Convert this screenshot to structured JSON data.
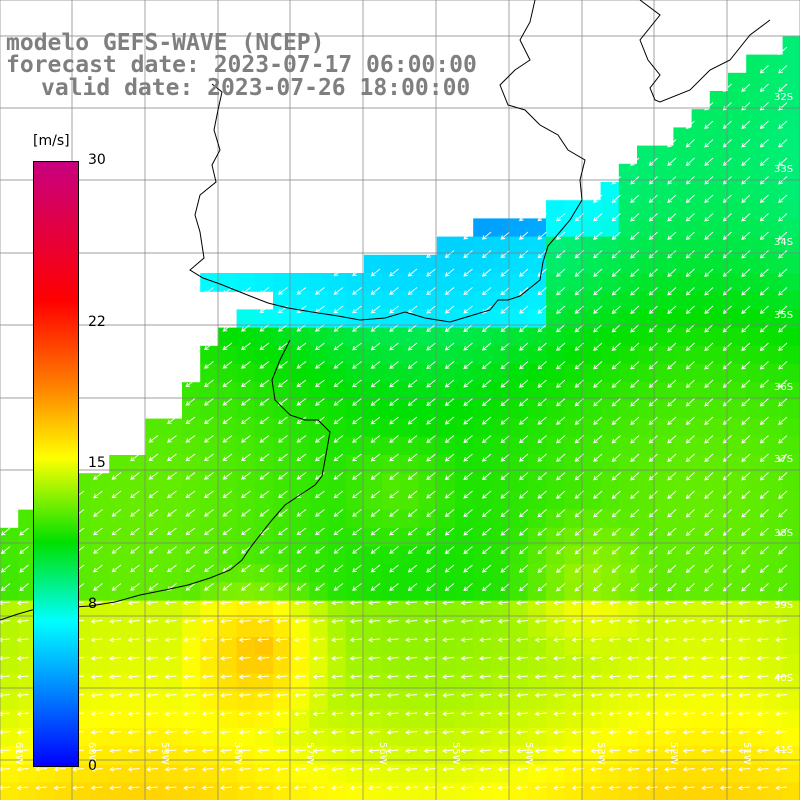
{
  "header": {
    "line1": "modelo GEFS-WAVE (NCEP)",
    "line2": "forecast date: 2023-07-17 06:00:00",
    "line3": "valid date: 2023-07-26 18:00:00"
  },
  "colorbar": {
    "unit": "[m/s]",
    "ticks": [
      "30",
      "22",
      "15",
      "8",
      "0"
    ],
    "tick_values": [
      30,
      22,
      15,
      8,
      0
    ],
    "stops": [
      {
        "value": 30,
        "color": "#c8007f"
      },
      {
        "value": 22,
        "color": "#ff0000"
      },
      {
        "value": 18,
        "color": "#ff7f00"
      },
      {
        "value": 15,
        "color": "#ffff00"
      },
      {
        "value": 11,
        "color": "#00e000"
      },
      {
        "value": 8,
        "color": "#00ffff"
      },
      {
        "value": 4,
        "color": "#0080ff"
      },
      {
        "value": 0,
        "color": "#0000ff"
      }
    ]
  },
  "grid": {
    "lat_labels": [
      "32S",
      "33S",
      "34S",
      "35S",
      "36S",
      "37S",
      "38S",
      "39S",
      "40S",
      "41S"
    ],
    "lon_labels": [
      "61W",
      "60W",
      "59W",
      "58W",
      "57W",
      "56W",
      "55W",
      "54W",
      "53W",
      "52W",
      "51W"
    ]
  },
  "colors": {
    "land": "#ffffff",
    "coastline": "#000000",
    "gridline": "#7f7f7f",
    "arrows": "#ffffff",
    "title": "#7f7f7f"
  }
}
